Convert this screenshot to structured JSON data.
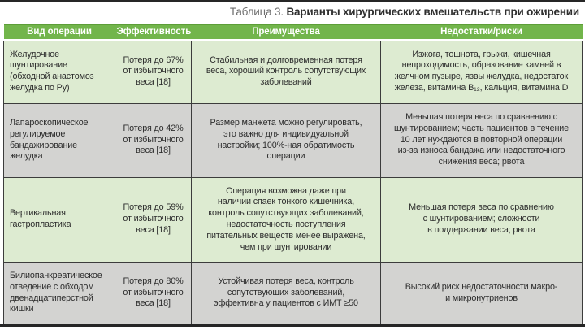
{
  "caption": {
    "prefix": "Таблица 3.",
    "title": "Варианты хирургических вмешательств при ожирении"
  },
  "table": {
    "columns": [
      "Вид операции",
      "Эффективность",
      "Преимущества",
      "Недостатки/риски"
    ],
    "rows": [
      {
        "operation": "Желудочное\nшунтирование\n(обходной анастомоз\nжелудка по Ру)",
        "effectiveness": "Потеря до 67%\nот избыточного\nвеса [18]",
        "advantages": "Стабильная и долговременная потеря\nвеса, хороший контроль сопутствующих\nзаболеваний",
        "risks": "Изжога, тошнота, грыжи, кишечная\nнепроходимость, образование камней в\nжелчном пузыре, язвы желудка, недостаток\nжелеза, витамина B₁₂, кальция, витамина D"
      },
      {
        "operation": "Лапароскопическое\nрегулируемое\nбандажирование\nжелудка",
        "effectiveness": "Потеря до 42%\nот избыточного\nвеса [18]",
        "advantages": "Размер манжета можно регулировать,\nэто важно для индивидуальной\nнастройки; 100%-ная обратимость\nоперации",
        "risks": "Меньшая потеря веса по сравнению с\nшунтированием; часть пациентов в течение\n10 лет нуждаются в повторной операции\nиз-за износа бандажа или недостаточного\nснижения веса; рвота"
      },
      {
        "operation": "Вертикальная\nгастропластика",
        "effectiveness": "Потеря до 59%\nот избыточного\nвеса [18]",
        "advantages": "Операция возможна даже при\nналичии спаек тонкого кишечника,\nконтроль сопутствующих заболеваний,\nнедостаточность поступления\nпитательных веществ менее выражена,\nчем при шунтировании",
        "risks": "Меньшая потеря веса по сравнению\nс шунтированием; сложности\nв поддержании веса; рвота"
      },
      {
        "operation": "Билиопанкреатическое\nотведение с обходом\nдвенадцатиперстной\nкишки",
        "effectiveness": "Потеря до 80%\nот избыточного\nвеса [18]",
        "advantages": "Устойчивая потеря веса, контроль\nсопутствующих заболеваний,\nэффективна у пациентов с ИМТ ≥50",
        "risks": "Высокий риск недостаточности макро-\nи микронутриенов"
      }
    ]
  },
  "colors": {
    "header_bg": "#72b54b",
    "header_top": "#5d9e38",
    "row_green": "#ddebd1",
    "row_gray": "#d3d3d1",
    "border": "#3c3c3c",
    "text": "#2d2d2d",
    "title_prefix": "#6e6e6e",
    "title_text": "#2f2f2f",
    "rule": "#262626"
  }
}
